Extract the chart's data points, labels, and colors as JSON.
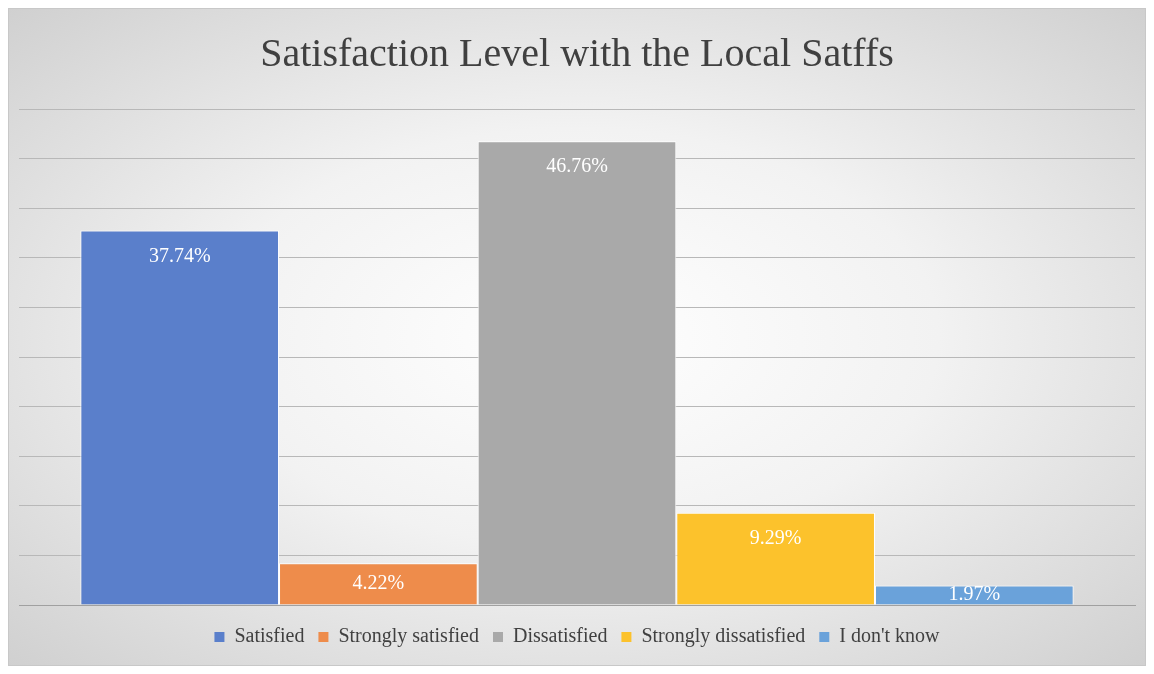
{
  "chart_data": {
    "type": "bar",
    "title": "Satisfaction Level with the Local Satffs",
    "categories": [
      null
    ],
    "series": [
      {
        "name": "Satisfied",
        "color": "#5a7fcb",
        "values": [
          37.74
        ],
        "value_labels": [
          "37.74%"
        ]
      },
      {
        "name": "Strongly satisfied",
        "color": "#ee8c4b",
        "values": [
          4.22
        ],
        "value_labels": [
          "4.22%"
        ]
      },
      {
        "name": "Dissatisfied",
        "color": "#a9a9a9",
        "values": [
          46.76
        ],
        "value_labels": [
          "46.76%"
        ]
      },
      {
        "name": "Strongly dissatisfied",
        "color": "#fcc22c",
        "values": [
          9.29
        ],
        "value_labels": [
          "9.29%"
        ]
      },
      {
        "name": "I don't know",
        "color": "#6aa2da",
        "values": [
          1.97
        ],
        "value_labels": [
          "1.97%"
        ]
      }
    ],
    "grid": "y",
    "legend": "bottom"
  }
}
